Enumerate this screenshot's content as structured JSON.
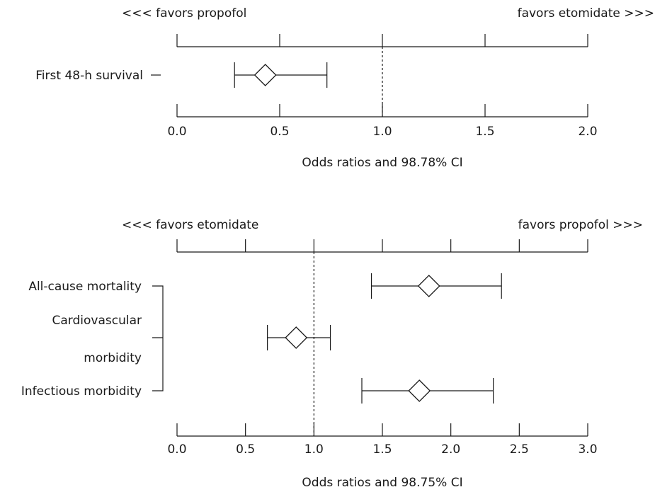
{
  "chart_data": [
    {
      "type": "forest",
      "left_label": "<<< favors propofol",
      "right_label": "favors etomidate >>>",
      "xlabel": "Odds ratios and 98.78% CI",
      "xlim": [
        0,
        2
      ],
      "ticks": [
        "0.0",
        "0.5",
        "1.0",
        "1.5",
        "2.0"
      ],
      "reference": 1.0,
      "rows": [
        {
          "label": "First 48-h survival",
          "or": 0.43,
          "lower": 0.28,
          "upper": 0.73
        }
      ]
    },
    {
      "type": "forest",
      "left_label": "<<< favors etomidate",
      "right_label": "favors propofol >>>",
      "xlabel": "Odds ratios and 98.75% CI",
      "xlim": [
        0,
        3
      ],
      "ticks": [
        "0.0",
        "0.5",
        "1.0",
        "1.5",
        "2.0",
        "2.5",
        "3.0"
      ],
      "reference": 1.0,
      "rows": [
        {
          "label": "All-cause mortality",
          "or": 1.84,
          "lower": 1.42,
          "upper": 2.37
        },
        {
          "label_lines": [
            "Cardiovascular",
            "morbidity"
          ],
          "or": 0.87,
          "lower": 0.66,
          "upper": 1.12
        },
        {
          "label": "Infectious morbidity",
          "or": 1.77,
          "lower": 1.35,
          "upper": 2.31
        }
      ]
    }
  ]
}
